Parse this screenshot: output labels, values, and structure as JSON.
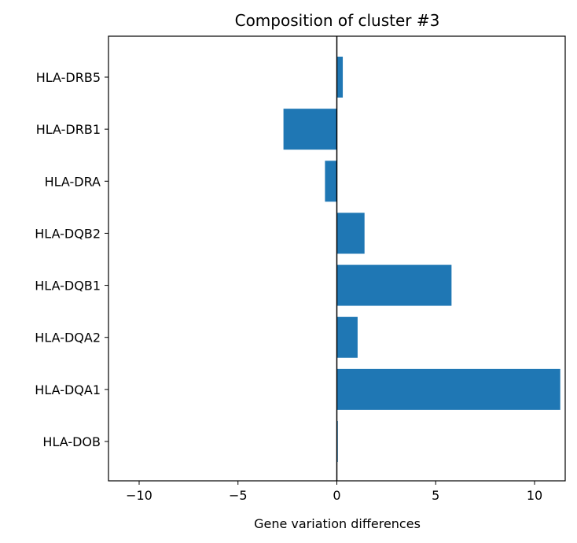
{
  "chart_data": {
    "type": "bar",
    "orientation": "horizontal",
    "title": "Composition of cluster #3",
    "xlabel": "Gene variation differences",
    "ylabel": "",
    "categories": [
      "HLA-DRB5",
      "HLA-DRB1",
      "HLA-DRA",
      "HLA-DQB2",
      "HLA-DQB1",
      "HLA-DQA2",
      "HLA-DQA1",
      "HLA-DOB"
    ],
    "values": [
      0.3,
      -2.7,
      -0.6,
      1.4,
      5.8,
      1.05,
      11.3,
      0.05
    ],
    "xlim": [
      -11.55,
      11.55
    ],
    "xticks": [
      -10,
      -5,
      0,
      5,
      10
    ],
    "xtick_labels": [
      "−10",
      "−5",
      "0",
      "5",
      "10"
    ],
    "bar_color": "#1f77b4",
    "zero_line": true,
    "grid": false
  }
}
